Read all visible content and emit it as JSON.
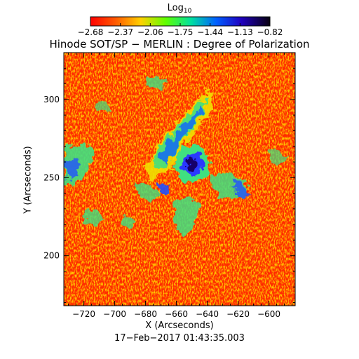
{
  "colorbar": {
    "title_main": "Log",
    "title_sub": "10",
    "ticks": [
      "−2.68",
      "−2.37",
      "−2.06",
      "−1.75",
      "−1.44",
      "−1.13",
      "−0.82"
    ],
    "range": [
      -2.68,
      -0.82
    ]
  },
  "plot": {
    "title": "Hinode SOT/SP − MERLIN : Degree of Polarization",
    "xlabel": "X (Arcseconds)",
    "ylabel": "Y (Arcseconds)",
    "xticks": [
      "−720",
      "−700",
      "−680",
      "−660",
      "−640",
      "−620",
      "−600"
    ],
    "xtick_values": [
      -720,
      -700,
      -680,
      -660,
      -640,
      -620,
      -600
    ],
    "yticks": [
      "300",
      "250",
      "200"
    ],
    "ytick_values": [
      300,
      250,
      200
    ],
    "xlim": [
      -733,
      -583
    ],
    "ylim": [
      168,
      330
    ],
    "timestamp": "17−Feb−2017 01:43:35.003"
  },
  "colors": {
    "background": "#ffffff",
    "low": "#ff1a00",
    "mid_low": "#ffcc00",
    "mid": "#00e060",
    "high": "#0000ff",
    "max": "#140030"
  }
}
